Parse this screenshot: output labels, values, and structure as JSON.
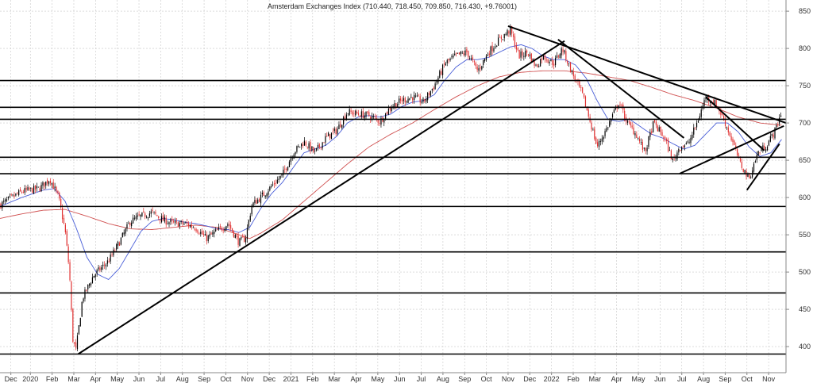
{
  "chart_data": {
    "type": "candlestick",
    "title": "Amsterdam Exchanges Index (710.440, 718.450, 709.850, 716.430, +9.76001)",
    "ylim": [
      365,
      865
    ],
    "grid": true,
    "y_ticks": [
      400,
      450,
      500,
      550,
      600,
      650,
      700,
      750,
      800,
      850
    ],
    "y_tick_labels": [
      "400",
      "450",
      "500",
      "550",
      "600",
      "650",
      "700",
      "750",
      "800",
      "850"
    ],
    "x_ticks": [
      {
        "label": "Dec",
        "t": 0.5
      },
      {
        "label": "2020",
        "t": 1.4
      },
      {
        "label": "Feb",
        "t": 2.4
      },
      {
        "label": "Mar",
        "t": 3.4
      },
      {
        "label": "Apr",
        "t": 4.4
      },
      {
        "label": "May",
        "t": 5.4
      },
      {
        "label": "Jun",
        "t": 6.4
      },
      {
        "label": "Jul",
        "t": 7.4
      },
      {
        "label": "Aug",
        "t": 8.4
      },
      {
        "label": "Sep",
        "t": 9.4
      },
      {
        "label": "Oct",
        "t": 10.4
      },
      {
        "label": "Nov",
        "t": 11.4
      },
      {
        "label": "Dec",
        "t": 12.4
      },
      {
        "label": "2021",
        "t": 13.4
      },
      {
        "label": "Feb",
        "t": 14.4
      },
      {
        "label": "Mar",
        "t": 15.4
      },
      {
        "label": "Apr",
        "t": 16.4
      },
      {
        "label": "May",
        "t": 17.4
      },
      {
        "label": "Jun",
        "t": 18.4
      },
      {
        "label": "Jul",
        "t": 19.4
      },
      {
        "label": "Aug",
        "t": 20.4
      },
      {
        "label": "Sep",
        "t": 21.4
      },
      {
        "label": "Oct",
        "t": 22.4
      },
      {
        "label": "Nov",
        "t": 23.4
      },
      {
        "label": "Dec",
        "t": 24.4
      },
      {
        "label": "2022",
        "t": 25.4
      },
      {
        "label": "Feb",
        "t": 26.4
      },
      {
        "label": "Mar",
        "t": 27.4
      },
      {
        "label": "Apr",
        "t": 28.4
      },
      {
        "label": "May",
        "t": 29.4
      },
      {
        "label": "Jun",
        "t": 30.4
      },
      {
        "label": "Jul",
        "t": 31.4
      },
      {
        "label": "Aug",
        "t": 32.4
      },
      {
        "label": "Sep",
        "t": 33.4
      },
      {
        "label": "Oct",
        "t": 34.4
      },
      {
        "label": "Nov",
        "t": 35.4
      }
    ],
    "t_range": [
      0,
      36.2
    ],
    "price_keypoints": [
      [
        0.0,
        590
      ],
      [
        1.0,
        608
      ],
      [
        1.8,
        612
      ],
      [
        2.3,
        625
      ],
      [
        2.7,
        600
      ],
      [
        3.0,
        555
      ],
      [
        3.2,
        500
      ],
      [
        3.35,
        410
      ],
      [
        3.5,
        395
      ],
      [
        3.8,
        465
      ],
      [
        4.3,
        495
      ],
      [
        5.0,
        515
      ],
      [
        5.5,
        540
      ],
      [
        6.0,
        568
      ],
      [
        6.5,
        575
      ],
      [
        7.0,
        580
      ],
      [
        7.5,
        570
      ],
      [
        8.0,
        565
      ],
      [
        8.5,
        565
      ],
      [
        9.0,
        560
      ],
      [
        9.5,
        545
      ],
      [
        10.0,
        555
      ],
      [
        10.5,
        565
      ],
      [
        11.0,
        540
      ],
      [
        11.3,
        545
      ],
      [
        11.6,
        590
      ],
      [
        12.0,
        600
      ],
      [
        12.5,
        615
      ],
      [
        13.0,
        630
      ],
      [
        13.5,
        660
      ],
      [
        14.0,
        675
      ],
      [
        14.5,
        660
      ],
      [
        15.0,
        680
      ],
      [
        15.5,
        690
      ],
      [
        16.0,
        715
      ],
      [
        16.5,
        712
      ],
      [
        17.0,
        710
      ],
      [
        17.5,
        702
      ],
      [
        18.0,
        722
      ],
      [
        18.5,
        730
      ],
      [
        19.0,
        735
      ],
      [
        19.5,
        728
      ],
      [
        20.0,
        750
      ],
      [
        20.5,
        780
      ],
      [
        21.0,
        790
      ],
      [
        21.5,
        795
      ],
      [
        22.0,
        770
      ],
      [
        22.5,
        795
      ],
      [
        23.0,
        812
      ],
      [
        23.5,
        825
      ],
      [
        23.9,
        790
      ],
      [
        24.3,
        795
      ],
      [
        24.7,
        775
      ],
      [
        25.0,
        790
      ],
      [
        25.5,
        780
      ],
      [
        25.9,
        800
      ],
      [
        26.3,
        770
      ],
      [
        26.8,
        740
      ],
      [
        27.2,
        700
      ],
      [
        27.5,
        668
      ],
      [
        27.9,
        690
      ],
      [
        28.5,
        728
      ],
      [
        28.9,
        700
      ],
      [
        29.3,
        685
      ],
      [
        29.7,
        660
      ],
      [
        30.1,
        700
      ],
      [
        30.6,
        680
      ],
      [
        31.0,
        648
      ],
      [
        31.3,
        668
      ],
      [
        31.7,
        672
      ],
      [
        32.1,
        700
      ],
      [
        32.5,
        735
      ],
      [
        33.0,
        725
      ],
      [
        33.4,
        700
      ],
      [
        33.8,
        670
      ],
      [
        34.1,
        645
      ],
      [
        34.5,
        625
      ],
      [
        34.9,
        660
      ],
      [
        35.3,
        670
      ],
      [
        35.7,
        690
      ],
      [
        36.0,
        716
      ]
    ],
    "sma_short_keypoints": [
      [
        0.0,
        588
      ],
      [
        1.0,
        600
      ],
      [
        2.0,
        610
      ],
      [
        2.5,
        612
      ],
      [
        3.0,
        595
      ],
      [
        3.5,
        560
      ],
      [
        4.0,
        520
      ],
      [
        4.5,
        497
      ],
      [
        5.0,
        490
      ],
      [
        5.5,
        505
      ],
      [
        6.0,
        530
      ],
      [
        6.5,
        555
      ],
      [
        7.0,
        568
      ],
      [
        7.5,
        572
      ],
      [
        8.0,
        570
      ],
      [
        8.5,
        567
      ],
      [
        9.0,
        565
      ],
      [
        9.5,
        562
      ],
      [
        10.0,
        558
      ],
      [
        10.5,
        557
      ],
      [
        11.0,
        553
      ],
      [
        11.5,
        560
      ],
      [
        12.0,
        585
      ],
      [
        12.5,
        605
      ],
      [
        13.0,
        620
      ],
      [
        13.5,
        640
      ],
      [
        14.0,
        660
      ],
      [
        14.5,
        665
      ],
      [
        15.0,
        670
      ],
      [
        15.5,
        682
      ],
      [
        16.0,
        700
      ],
      [
        16.5,
        708
      ],
      [
        17.0,
        710
      ],
      [
        17.5,
        708
      ],
      [
        18.0,
        712
      ],
      [
        18.5,
        722
      ],
      [
        19.0,
        728
      ],
      [
        19.5,
        730
      ],
      [
        20.0,
        738
      ],
      [
        20.5,
        758
      ],
      [
        21.0,
        775
      ],
      [
        21.5,
        785
      ],
      [
        22.0,
        785
      ],
      [
        22.5,
        788
      ],
      [
        23.0,
        795
      ],
      [
        23.5,
        802
      ],
      [
        24.0,
        805
      ],
      [
        24.5,
        800
      ],
      [
        25.0,
        790
      ],
      [
        25.5,
        785
      ],
      [
        26.0,
        785
      ],
      [
        26.5,
        778
      ],
      [
        27.0,
        760
      ],
      [
        27.5,
        730
      ],
      [
        28.0,
        705
      ],
      [
        28.5,
        702
      ],
      [
        29.0,
        705
      ],
      [
        29.5,
        695
      ],
      [
        30.0,
        685
      ],
      [
        30.5,
        680
      ],
      [
        31.0,
        672
      ],
      [
        31.5,
        665
      ],
      [
        32.0,
        670
      ],
      [
        32.5,
        685
      ],
      [
        33.0,
        700
      ],
      [
        33.5,
        700
      ],
      [
        34.0,
        688
      ],
      [
        34.5,
        668
      ],
      [
        35.0,
        655
      ],
      [
        35.5,
        660
      ],
      [
        36.0,
        678
      ]
    ],
    "sma_long_keypoints": [
      [
        0.0,
        572
      ],
      [
        1.0,
        578
      ],
      [
        2.0,
        583
      ],
      [
        3.0,
        584
      ],
      [
        4.0,
        575
      ],
      [
        5.0,
        565
      ],
      [
        6.0,
        558
      ],
      [
        7.0,
        557
      ],
      [
        8.0,
        560
      ],
      [
        9.0,
        563
      ],
      [
        10.0,
        560
      ],
      [
        11.0,
        550
      ],
      [
        11.5,
        545
      ],
      [
        12.0,
        552
      ],
      [
        13.0,
        570
      ],
      [
        14.0,
        595
      ],
      [
        15.0,
        620
      ],
      [
        16.0,
        645
      ],
      [
        17.0,
        668
      ],
      [
        18.0,
        685
      ],
      [
        19.0,
        700
      ],
      [
        20.0,
        718
      ],
      [
        21.0,
        735
      ],
      [
        22.0,
        750
      ],
      [
        23.0,
        762
      ],
      [
        24.0,
        768
      ],
      [
        25.0,
        770
      ],
      [
        26.0,
        770
      ],
      [
        27.0,
        767
      ],
      [
        28.0,
        762
      ],
      [
        29.0,
        757
      ],
      [
        30.0,
        748
      ],
      [
        31.0,
        738
      ],
      [
        32.0,
        730
      ],
      [
        33.0,
        720
      ],
      [
        34.0,
        708
      ],
      [
        35.0,
        700
      ],
      [
        36.0,
        697
      ]
    ],
    "horizontal_levels": [
      390,
      472,
      527,
      588,
      632,
      654,
      705,
      721,
      757
    ],
    "trend_lines": [
      {
        "from": [
          3.6,
          390
        ],
        "to": [
          26.0,
          810
        ]
      },
      {
        "from": [
          23.4,
          830
        ],
        "to": [
          36.2,
          700
        ]
      },
      {
        "from": [
          25.7,
          812
        ],
        "to": [
          31.5,
          680
        ]
      },
      {
        "from": [
          31.3,
          632
        ],
        "to": [
          36.1,
          696
        ]
      },
      {
        "from": [
          32.5,
          735
        ],
        "to": [
          35.2,
          663
        ]
      },
      {
        "from": [
          34.4,
          610
        ],
        "to": [
          35.9,
          672
        ]
      }
    ],
    "colors": {
      "up": "#000000",
      "down": "#e03030",
      "sma_short": "#4a5fd8",
      "sma_long": "#d05050",
      "levels": "#000000",
      "grid": "#c8c8c8",
      "background": "#ffffff"
    }
  }
}
